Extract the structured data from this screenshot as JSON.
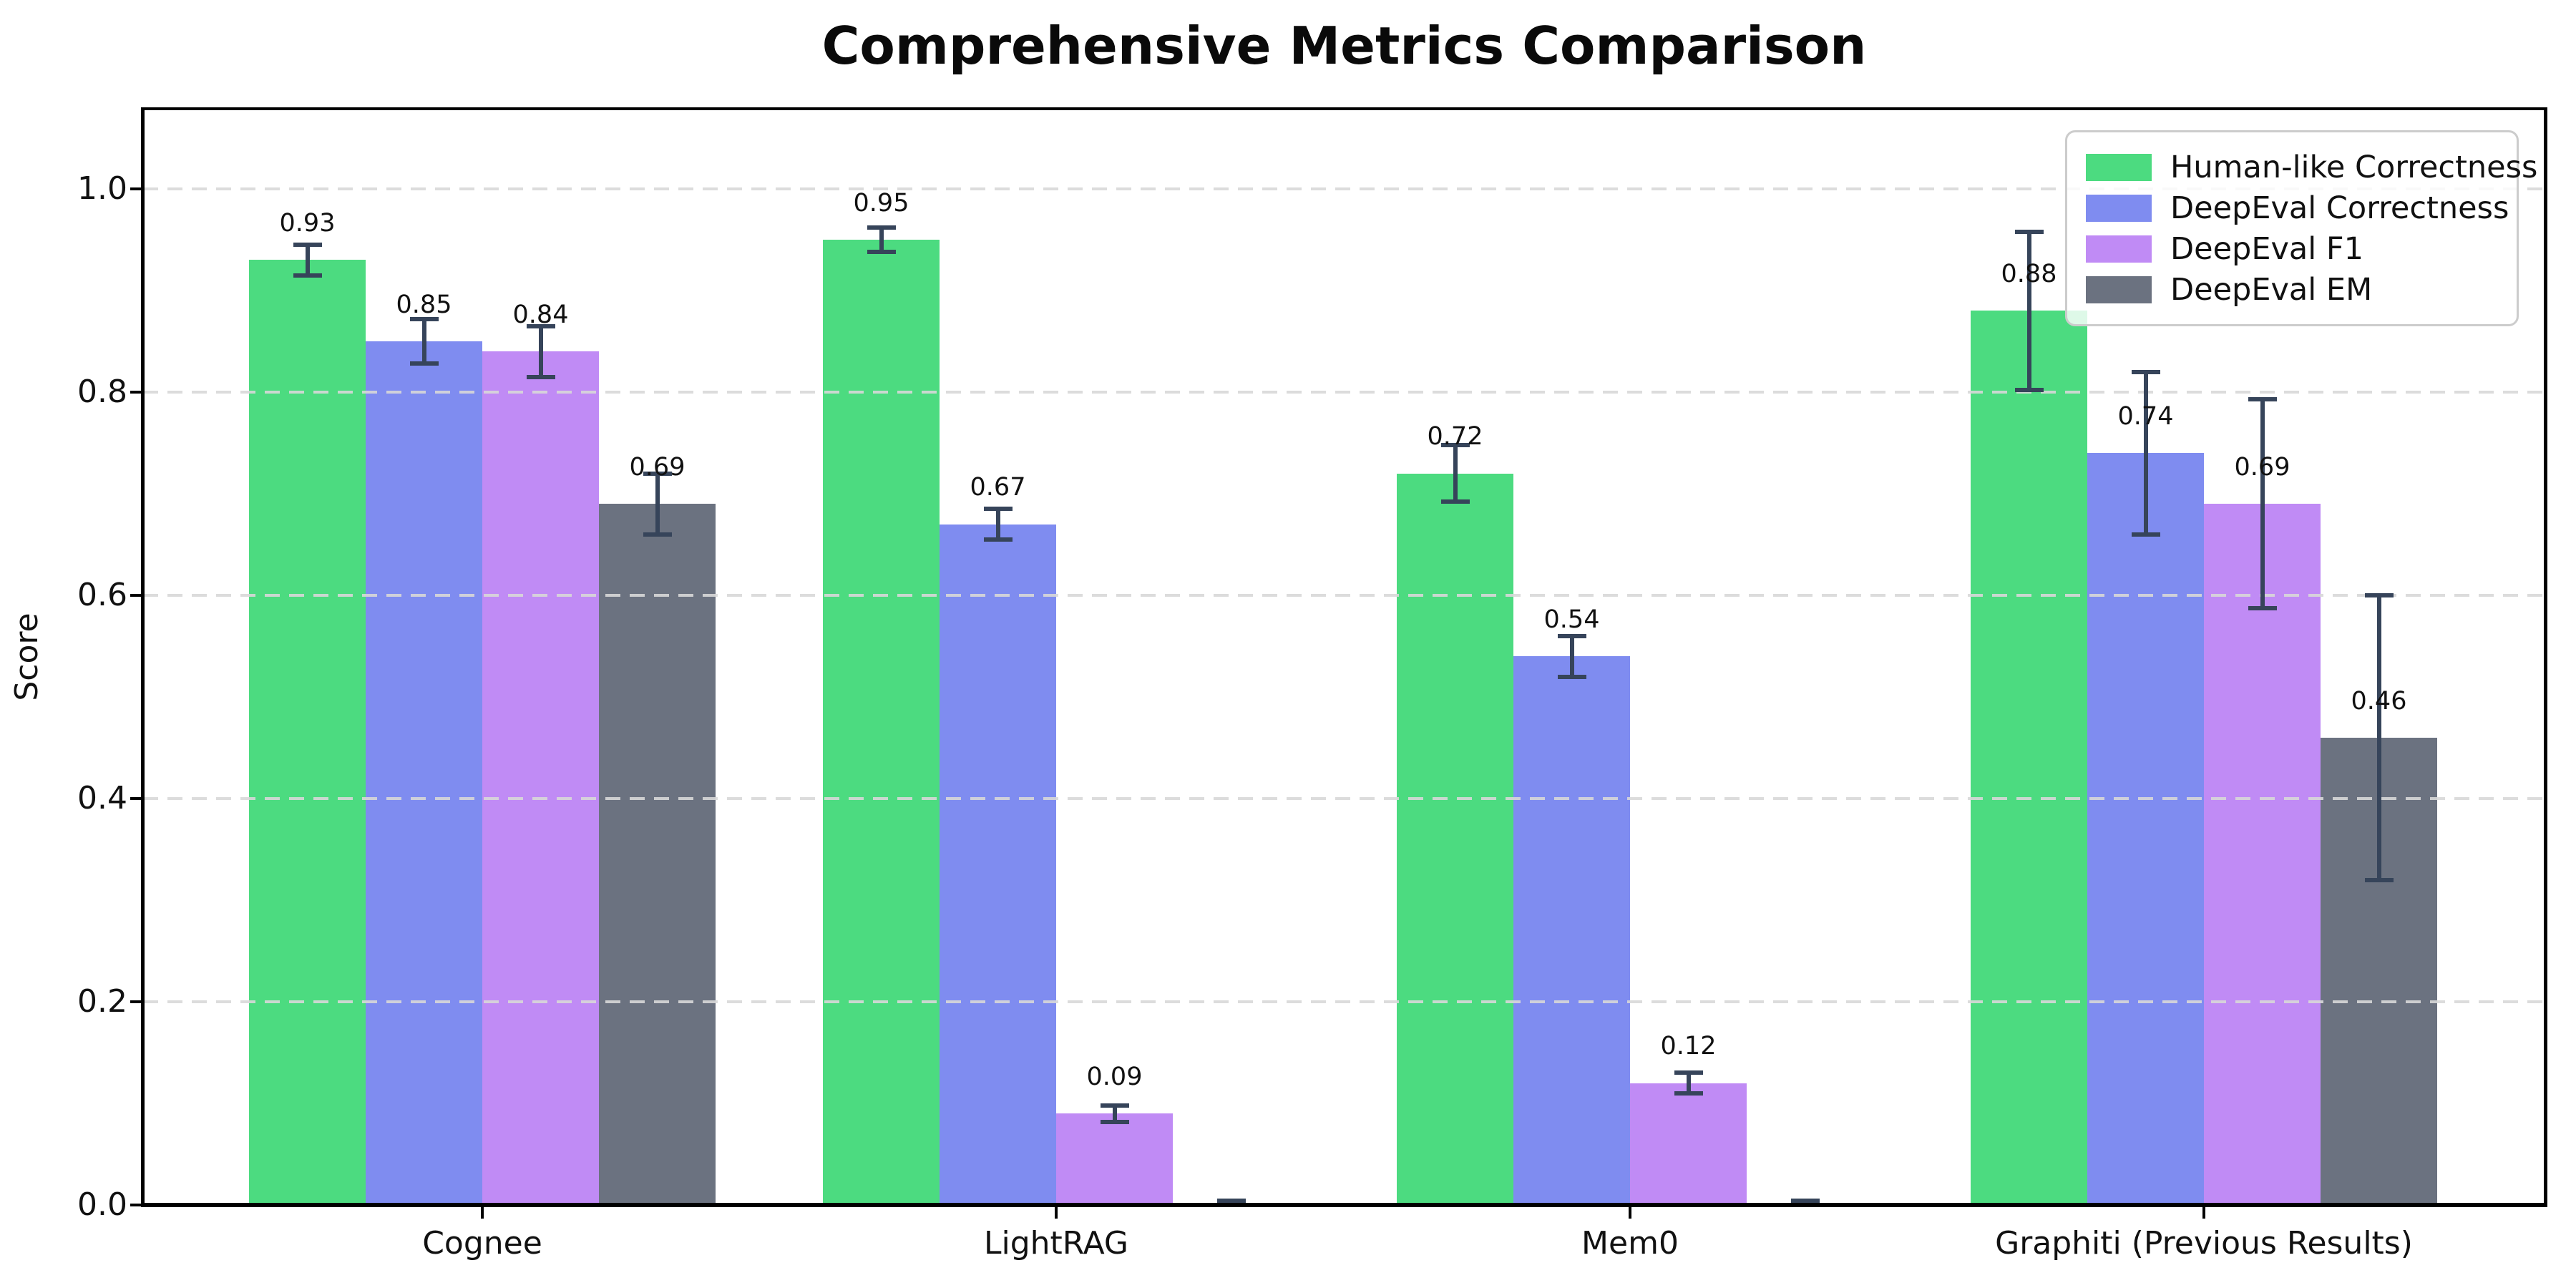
{
  "title": "Comprehensive Metrics Comparison",
  "chart_data": {
    "type": "bar",
    "title": "Comprehensive Metrics Comparison",
    "xlabel": "",
    "ylabel": "Score",
    "categories": [
      "Cognee",
      "LightRAG",
      "Mem0",
      "Graphiti (Previous Results)"
    ],
    "series": [
      {
        "name": "Human-like Correctness",
        "color": "#4cdb80",
        "values": [
          0.93,
          0.95,
          0.72,
          0.88
        ],
        "errors": [
          0.015,
          0.012,
          0.028,
          0.078
        ]
      },
      {
        "name": "DeepEval Correctness",
        "color": "#7f8cf0",
        "values": [
          0.85,
          0.67,
          0.54,
          0.74
        ],
        "errors": [
          0.022,
          0.015,
          0.02,
          0.08
        ]
      },
      {
        "name": "DeepEval F1",
        "color": "#c08bf5",
        "values": [
          0.84,
          0.09,
          0.12,
          0.69
        ],
        "errors": [
          0.025,
          0.008,
          0.01,
          0.103
        ]
      },
      {
        "name": "DeepEval EM",
        "color": "#6b7280",
        "values": [
          0.69,
          0.0,
          0.0,
          0.46
        ],
        "errors": [
          0.03,
          0.004,
          0.004,
          0.14
        ]
      }
    ],
    "bar_value_labels": [
      [
        "0.93",
        "0.95",
        "0.72",
        "0.88"
      ],
      [
        "0.85",
        "0.67",
        "0.54",
        "0.74"
      ],
      [
        "0.84",
        "0.09",
        "0.12",
        "0.69"
      ],
      [
        "0.69",
        "",
        "",
        "0.46"
      ]
    ],
    "yticks": [
      {
        "label": "0.0",
        "value": 0.0
      },
      {
        "label": "0.2",
        "value": 0.2
      },
      {
        "label": "0.4",
        "value": 0.4
      },
      {
        "label": "0.6",
        "value": 0.6
      },
      {
        "label": "0.8",
        "value": 0.8
      },
      {
        "label": "1.0",
        "value": 1.0
      }
    ],
    "ylim": [
      0,
      1.078
    ],
    "grid": "horizontal-dashed",
    "grid_color": "#d8d8d8",
    "errorbar_color": "#36445a",
    "legend_position": "upper-right",
    "legend_border_color": "#cccccc"
  }
}
